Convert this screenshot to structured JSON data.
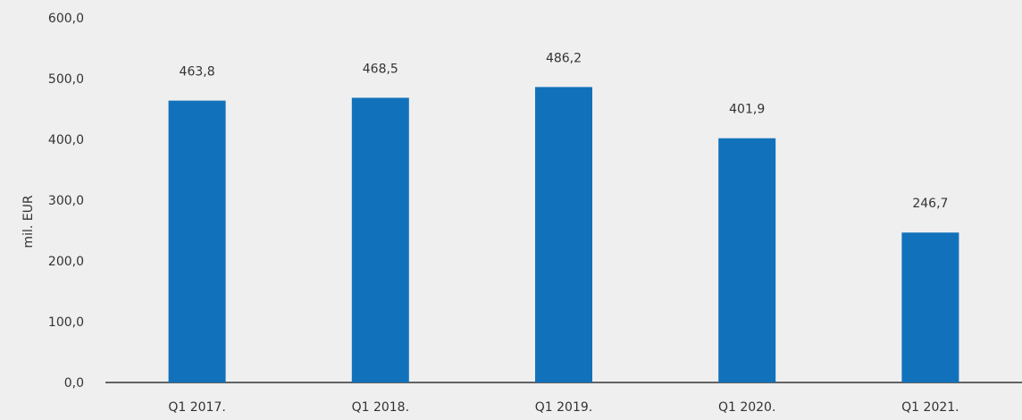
{
  "chart_data": {
    "type": "bar",
    "title": "",
    "xlabel": "",
    "ylabel": "mil. EUR",
    "categories": [
      "Q1 2017.",
      "Q1 2018.",
      "Q1 2019.",
      "Q1 2020.",
      "Q1 2021."
    ],
    "values": [
      463.8,
      468.5,
      486.2,
      401.9,
      246.7
    ],
    "value_labels": [
      "463,8",
      "468,5",
      "486,2",
      "401,9",
      "246,7"
    ],
    "ylim": [
      0,
      600
    ],
    "yticks": [
      0,
      100,
      200,
      300,
      400,
      500,
      600
    ],
    "ytick_labels": [
      "0,0",
      "100,0",
      "200,0",
      "300,0",
      "400,0",
      "500,0",
      "600,0"
    ],
    "grid": false,
    "legend": "none",
    "colors": {
      "bar": "#1172bb",
      "axis": "#333333",
      "background": "#efefef"
    }
  }
}
